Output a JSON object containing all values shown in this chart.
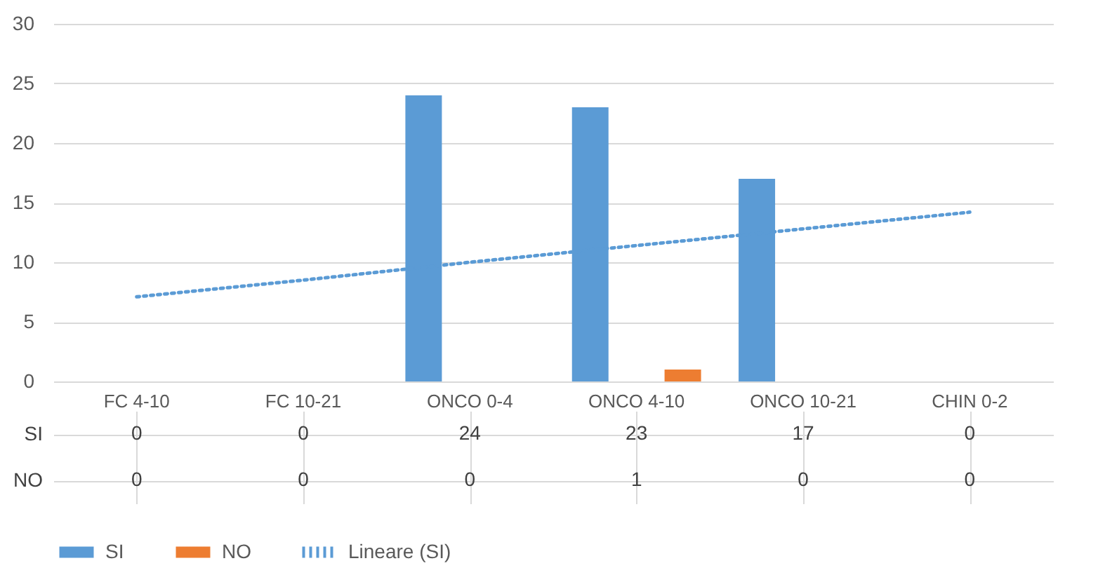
{
  "chart_data": {
    "type": "bar",
    "categories": [
      "FC 4-10",
      "FC 10-21",
      "ONCO 0-4",
      "ONCO 4-10",
      "ONCO 10-21",
      "CHIN 0-2"
    ],
    "series": [
      {
        "name": "SI",
        "color": "#5b9bd5",
        "values": [
          0,
          0,
          24,
          23,
          17,
          0
        ],
        "value_labels": [
          "0",
          "0",
          "24",
          "23",
          "17",
          "0"
        ]
      },
      {
        "name": "NO",
        "color": "#ed7d31",
        "values": [
          0,
          0,
          0,
          1,
          0,
          0
        ],
        "value_labels": [
          "0",
          "0",
          "0",
          "1",
          "0",
          "0"
        ]
      },
      {
        "name": "Lineare (SI)",
        "type": "line",
        "line_style": "dotted",
        "color": "#5b9bd5",
        "x": [
          "FC 4-10",
          "FC 10-21",
          "ONCO 0-4",
          "ONCO 4-10",
          "ONCO 10-21",
          "CHIN 0-2"
        ],
        "values": [
          7.1,
          8.5,
          10.0,
          11.4,
          12.8,
          14.2
        ]
      }
    ],
    "ylim": [
      0,
      30
    ],
    "yticks": [
      0,
      5,
      10,
      15,
      20,
      25,
      30
    ],
    "grid": "y",
    "legend": "bottom"
  }
}
